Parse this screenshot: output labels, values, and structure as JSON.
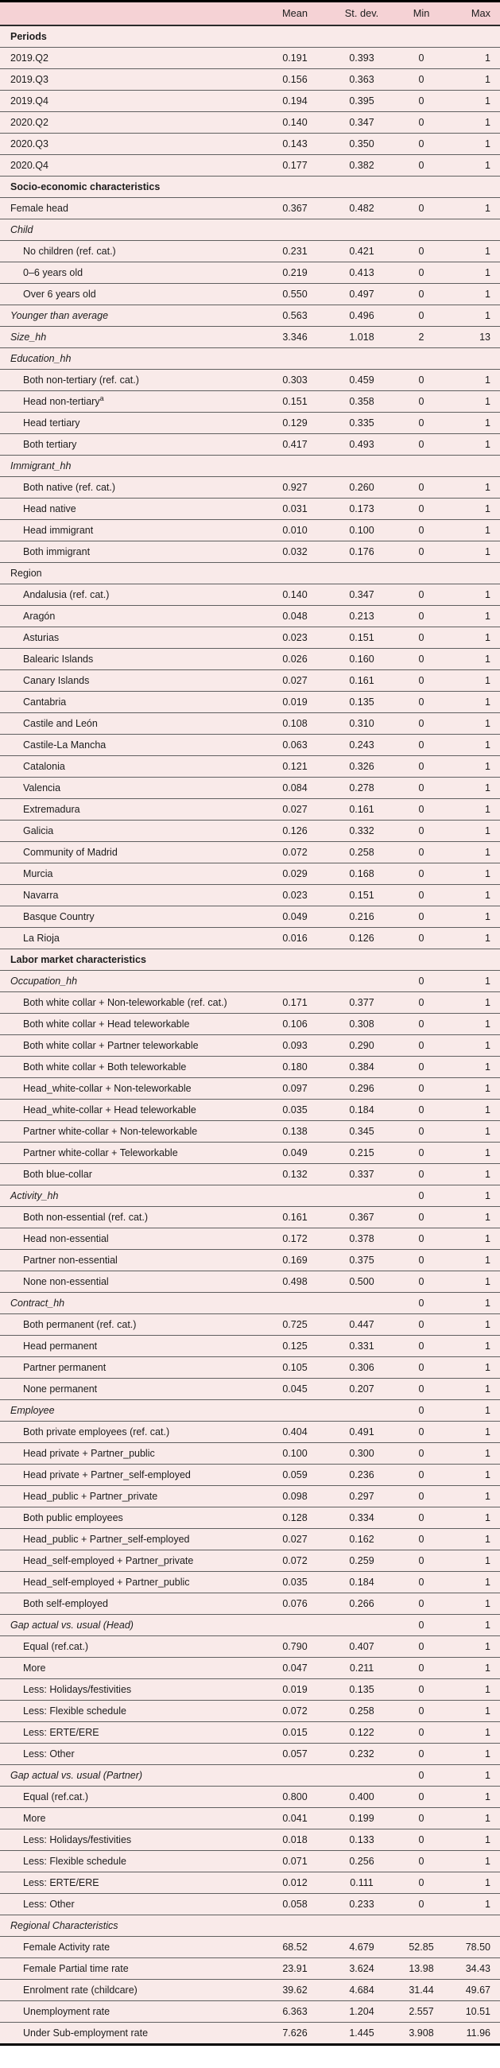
{
  "table": {
    "columns": {
      "label": "",
      "mean": "Mean",
      "sd": "St. dev.",
      "min": "Min",
      "max": "Max"
    },
    "rows": [
      {
        "label": "Periods",
        "style": "section"
      },
      {
        "label": "2019.Q2",
        "style": "row",
        "mean": "0.191",
        "sd": "0.393",
        "min": "0",
        "max": "1"
      },
      {
        "label": "2019.Q3",
        "style": "row",
        "mean": "0.156",
        "sd": "0.363",
        "min": "0",
        "max": "1"
      },
      {
        "label": "2019.Q4",
        "style": "row",
        "mean": "0.194",
        "sd": "0.395",
        "min": "0",
        "max": "1"
      },
      {
        "label": "2020.Q2",
        "style": "row",
        "mean": "0.140",
        "sd": "0.347",
        "min": "0",
        "max": "1"
      },
      {
        "label": "2020.Q3",
        "style": "row",
        "mean": "0.143",
        "sd": "0.350",
        "min": "0",
        "max": "1"
      },
      {
        "label": "2020.Q4",
        "style": "row",
        "mean": "0.177",
        "sd": "0.382",
        "min": "0",
        "max": "1"
      },
      {
        "label": "Socio-economic characteristics",
        "style": "section"
      },
      {
        "label": "Female head",
        "style": "row",
        "mean": "0.367",
        "sd": "0.482",
        "min": "0",
        "max": "1"
      },
      {
        "label": "Child",
        "style": "sub"
      },
      {
        "label": "No children (ref. cat.)",
        "style": "indent",
        "mean": "0.231",
        "sd": "0.421",
        "min": "0",
        "max": "1"
      },
      {
        "label": "0–6 years old",
        "style": "indent",
        "mean": "0.219",
        "sd": "0.413",
        "min": "0",
        "max": "1"
      },
      {
        "label": "Over 6 years old",
        "style": "indent",
        "mean": "0.550",
        "sd": "0.497",
        "min": "0",
        "max": "1"
      },
      {
        "label": "Younger than average",
        "style": "rowitalic",
        "mean": "0.563",
        "sd": "0.496",
        "min": "0",
        "max": "1"
      },
      {
        "label": "Size_hh",
        "style": "rowitalic",
        "mean": "3.346",
        "sd": "1.018",
        "min": "2",
        "max": "13"
      },
      {
        "label": "Education_hh",
        "style": "sub"
      },
      {
        "label": "Both non-tertiary (ref. cat.)",
        "style": "indent",
        "mean": "0.303",
        "sd": "0.459",
        "min": "0",
        "max": "1"
      },
      {
        "label": "Head non-tertiary",
        "sup": "a",
        "style": "indent",
        "mean": "0.151",
        "sd": "0.358",
        "min": "0",
        "max": "1"
      },
      {
        "label": "Head tertiary",
        "style": "indent",
        "mean": "0.129",
        "sd": "0.335",
        "min": "0",
        "max": "1"
      },
      {
        "label": "Both tertiary",
        "style": "indent",
        "mean": "0.417",
        "sd": "0.493",
        "min": "0",
        "max": "1"
      },
      {
        "label": "Immigrant_hh",
        "style": "sub"
      },
      {
        "label": "Both native (ref. cat.)",
        "style": "indent",
        "mean": "0.927",
        "sd": "0.260",
        "min": "0",
        "max": "1"
      },
      {
        "label": "Head native",
        "style": "indent",
        "mean": "0.031",
        "sd": "0.173",
        "min": "0",
        "max": "1"
      },
      {
        "label": "Head immigrant",
        "style": "indent",
        "mean": "0.010",
        "sd": "0.100",
        "min": "0",
        "max": "1"
      },
      {
        "label": "Both immigrant",
        "style": "indent",
        "mean": "0.032",
        "sd": "0.176",
        "min": "0",
        "max": "1"
      },
      {
        "label": "Region",
        "style": "subplain"
      },
      {
        "label": "Andalusia (ref. cat.)",
        "style": "indent",
        "mean": "0.140",
        "sd": "0.347",
        "min": "0",
        "max": "1"
      },
      {
        "label": "Aragón",
        "style": "indent",
        "mean": "0.048",
        "sd": "0.213",
        "min": "0",
        "max": "1"
      },
      {
        "label": "Asturias",
        "style": "indent",
        "mean": "0.023",
        "sd": "0.151",
        "min": "0",
        "max": "1"
      },
      {
        "label": "Balearic Islands",
        "style": "indent",
        "mean": "0.026",
        "sd": "0.160",
        "min": "0",
        "max": "1"
      },
      {
        "label": "Canary Islands",
        "style": "indent",
        "mean": "0.027",
        "sd": "0.161",
        "min": "0",
        "max": "1"
      },
      {
        "label": "Cantabria",
        "style": "indent",
        "mean": "0.019",
        "sd": "0.135",
        "min": "0",
        "max": "1"
      },
      {
        "label": "Castile and León",
        "style": "indent",
        "mean": "0.108",
        "sd": "0.310",
        "min": "0",
        "max": "1"
      },
      {
        "label": "Castile-La Mancha",
        "style": "indent",
        "mean": "0.063",
        "sd": "0.243",
        "min": "0",
        "max": "1"
      },
      {
        "label": "Catalonia",
        "style": "indent",
        "mean": "0.121",
        "sd": "0.326",
        "min": "0",
        "max": "1"
      },
      {
        "label": "Valencia",
        "style": "indent",
        "mean": "0.084",
        "sd": "0.278",
        "min": "0",
        "max": "1"
      },
      {
        "label": "Extremadura",
        "style": "indent",
        "mean": "0.027",
        "sd": "0.161",
        "min": "0",
        "max": "1"
      },
      {
        "label": "Galicia",
        "style": "indent",
        "mean": "0.126",
        "sd": "0.332",
        "min": "0",
        "max": "1"
      },
      {
        "label": "Community of Madrid",
        "style": "indent",
        "mean": "0.072",
        "sd": "0.258",
        "min": "0",
        "max": "1"
      },
      {
        "label": "Murcia",
        "style": "indent",
        "mean": "0.029",
        "sd": "0.168",
        "min": "0",
        "max": "1"
      },
      {
        "label": "Navarra",
        "style": "indent",
        "mean": "0.023",
        "sd": "0.151",
        "min": "0",
        "max": "1"
      },
      {
        "label": "Basque Country",
        "style": "indent",
        "mean": "0.049",
        "sd": "0.216",
        "min": "0",
        "max": "1"
      },
      {
        "label": "La Rioja",
        "style": "indent",
        "mean": "0.016",
        "sd": "0.126",
        "min": "0",
        "max": "1"
      },
      {
        "label": "Labor market characteristics",
        "style": "section"
      },
      {
        "label": "Occupation_hh",
        "style": "sub",
        "min": "0",
        "max": "1"
      },
      {
        "label": "Both white collar + Non-teleworkable (ref. cat.)",
        "style": "indent",
        "mean": "0.171",
        "sd": "0.377",
        "min": "0",
        "max": "1"
      },
      {
        "label": "Both white collar + Head teleworkable",
        "style": "indent",
        "mean": "0.106",
        "sd": "0.308",
        "min": "0",
        "max": "1"
      },
      {
        "label": "Both white collar + Partner teleworkable",
        "style": "indent",
        "mean": "0.093",
        "sd": "0.290",
        "min": "0",
        "max": "1"
      },
      {
        "label": "Both white collar + Both teleworkable",
        "style": "indent",
        "mean": "0.180",
        "sd": "0.384",
        "min": "0",
        "max": "1"
      },
      {
        "label": "Head_white-collar + Non-teleworkable",
        "style": "indent",
        "mean": "0.097",
        "sd": "0.296",
        "min": "0",
        "max": "1"
      },
      {
        "label": "Head_white-collar + Head teleworkable",
        "style": "indent",
        "mean": "0.035",
        "sd": "0.184",
        "min": "0",
        "max": "1"
      },
      {
        "label": "Partner white-collar + Non-teleworkable",
        "style": "indent",
        "mean": "0.138",
        "sd": "0.345",
        "min": "0",
        "max": "1"
      },
      {
        "label": "Partner white-collar + Teleworkable",
        "style": "indent",
        "mean": "0.049",
        "sd": "0.215",
        "min": "0",
        "max": "1"
      },
      {
        "label": "Both blue-collar",
        "style": "indent",
        "mean": "0.132",
        "sd": "0.337",
        "min": "0",
        "max": "1"
      },
      {
        "label": "Activity_hh",
        "style": "sub",
        "min": "0",
        "max": "1"
      },
      {
        "label": "Both non-essential (ref. cat.)",
        "style": "indent",
        "mean": "0.161",
        "sd": "0.367",
        "min": "0",
        "max": "1"
      },
      {
        "label": "Head non-essential",
        "style": "indent",
        "mean": "0.172",
        "sd": "0.378",
        "min": "0",
        "max": "1"
      },
      {
        "label": "Partner non-essential",
        "style": "indent",
        "mean": "0.169",
        "sd": "0.375",
        "min": "0",
        "max": "1"
      },
      {
        "label": "None non-essential",
        "style": "indent",
        "mean": "0.498",
        "sd": "0.500",
        "min": "0",
        "max": "1"
      },
      {
        "label": "Contract_hh",
        "style": "sub",
        "min": "0",
        "max": "1"
      },
      {
        "label": "Both permanent (ref. cat.)",
        "style": "indent",
        "mean": "0.725",
        "sd": "0.447",
        "min": "0",
        "max": "1"
      },
      {
        "label": "Head permanent",
        "style": "indent",
        "mean": "0.125",
        "sd": "0.331",
        "min": "0",
        "max": "1"
      },
      {
        "label": "Partner permanent",
        "style": "indent",
        "mean": "0.105",
        "sd": "0.306",
        "min": "0",
        "max": "1"
      },
      {
        "label": "None permanent",
        "style": "indent",
        "mean": "0.045",
        "sd": "0.207",
        "min": "0",
        "max": "1"
      },
      {
        "label": "Employee",
        "style": "sub",
        "min": "0",
        "max": "1"
      },
      {
        "label": "Both private employees (ref. cat.)",
        "style": "indent",
        "mean": "0.404",
        "sd": "0.491",
        "min": "0",
        "max": "1"
      },
      {
        "label": "Head private + Partner_public",
        "style": "indent",
        "mean": "0.100",
        "sd": "0.300",
        "min": "0",
        "max": "1"
      },
      {
        "label": "Head private + Partner_self-employed",
        "style": "indent",
        "mean": "0.059",
        "sd": "0.236",
        "min": "0",
        "max": "1"
      },
      {
        "label": "Head_public + Partner_private",
        "style": "indent",
        "mean": "0.098",
        "sd": "0.297",
        "min": "0",
        "max": "1"
      },
      {
        "label": "Both public employees",
        "style": "indent",
        "mean": "0.128",
        "sd": "0.334",
        "min": "0",
        "max": "1"
      },
      {
        "label": "Head_public + Partner_self-employed",
        "style": "indent",
        "mean": "0.027",
        "sd": "0.162",
        "min": "0",
        "max": "1"
      },
      {
        "label": "Head_self-employed + Partner_private",
        "style": "indent",
        "mean": "0.072",
        "sd": "0.259",
        "min": "0",
        "max": "1"
      },
      {
        "label": "Head_self-employed + Partner_public",
        "style": "indent",
        "mean": "0.035",
        "sd": "0.184",
        "min": "0",
        "max": "1"
      },
      {
        "label": "Both self-employed",
        "style": "indent",
        "mean": "0.076",
        "sd": "0.266",
        "min": "0",
        "max": "1"
      },
      {
        "label": "Gap actual vs. usual (Head)",
        "style": "sub",
        "min": "0",
        "max": "1"
      },
      {
        "label": "Equal (ref.cat.)",
        "style": "indent",
        "mean": "0.790",
        "sd": "0.407",
        "min": "0",
        "max": "1"
      },
      {
        "label": "More",
        "style": "indent",
        "mean": "0.047",
        "sd": "0.211",
        "min": "0",
        "max": "1"
      },
      {
        "label": "Less: Holidays/festivities",
        "style": "indent",
        "mean": "0.019",
        "sd": "0.135",
        "min": "0",
        "max": "1"
      },
      {
        "label": "Less: Flexible schedule",
        "style": "indent",
        "mean": "0.072",
        "sd": "0.258",
        "min": "0",
        "max": "1"
      },
      {
        "label": "Less: ERTE/ERE",
        "style": "indent",
        "mean": "0.015",
        "sd": "0.122",
        "min": "0",
        "max": "1"
      },
      {
        "label": "Less: Other",
        "style": "indent",
        "mean": "0.057",
        "sd": "0.232",
        "min": "0",
        "max": "1"
      },
      {
        "label": "Gap actual vs. usual (Partner)",
        "style": "sub",
        "min": "0",
        "max": "1"
      },
      {
        "label": "Equal (ref.cat.)",
        "style": "indent",
        "mean": "0.800",
        "sd": "0.400",
        "min": "0",
        "max": "1"
      },
      {
        "label": "More",
        "style": "indent",
        "mean": "0.041",
        "sd": "0.199",
        "min": "0",
        "max": "1"
      },
      {
        "label": "Less: Holidays/festivities",
        "style": "indent",
        "mean": "0.018",
        "sd": "0.133",
        "min": "0",
        "max": "1"
      },
      {
        "label": "Less: Flexible schedule",
        "style": "indent",
        "mean": "0.071",
        "sd": "0.256",
        "min": "0",
        "max": "1"
      },
      {
        "label": "Less: ERTE/ERE",
        "style": "indent",
        "mean": "0.012",
        "sd": "0.111",
        "min": "0",
        "max": "1"
      },
      {
        "label": "Less: Other",
        "style": "indent",
        "mean": "0.058",
        "sd": "0.233",
        "min": "0",
        "max": "1"
      },
      {
        "label": "Regional Characteristics",
        "style": "sub"
      },
      {
        "label": "Female Activity rate",
        "style": "indent",
        "mean": "68.52",
        "sd": "4.679",
        "min": "52.85",
        "max": "78.50"
      },
      {
        "label": "Female Partial time rate",
        "style": "indent",
        "mean": "23.91",
        "sd": "3.624",
        "min": "13.98",
        "max": "34.43"
      },
      {
        "label": "Enrolment rate (childcare)",
        "style": "indent",
        "mean": "39.62",
        "sd": "4.684",
        "min": "31.44",
        "max": "49.67"
      },
      {
        "label": "Unemployment rate",
        "style": "indent",
        "mean": "6.363",
        "sd": "1.204",
        "min": "2.557",
        "max": "10.51"
      },
      {
        "label": "Under Sub-employment rate",
        "style": "indent",
        "mean": "7.626",
        "sd": "1.445",
        "min": "3.908",
        "max": "11.96"
      }
    ]
  },
  "colors": {
    "header_bg": "#f5d2d5",
    "body_bg": "#f9eae9",
    "border": "#000000",
    "row_divider": "#5f5f5f"
  }
}
